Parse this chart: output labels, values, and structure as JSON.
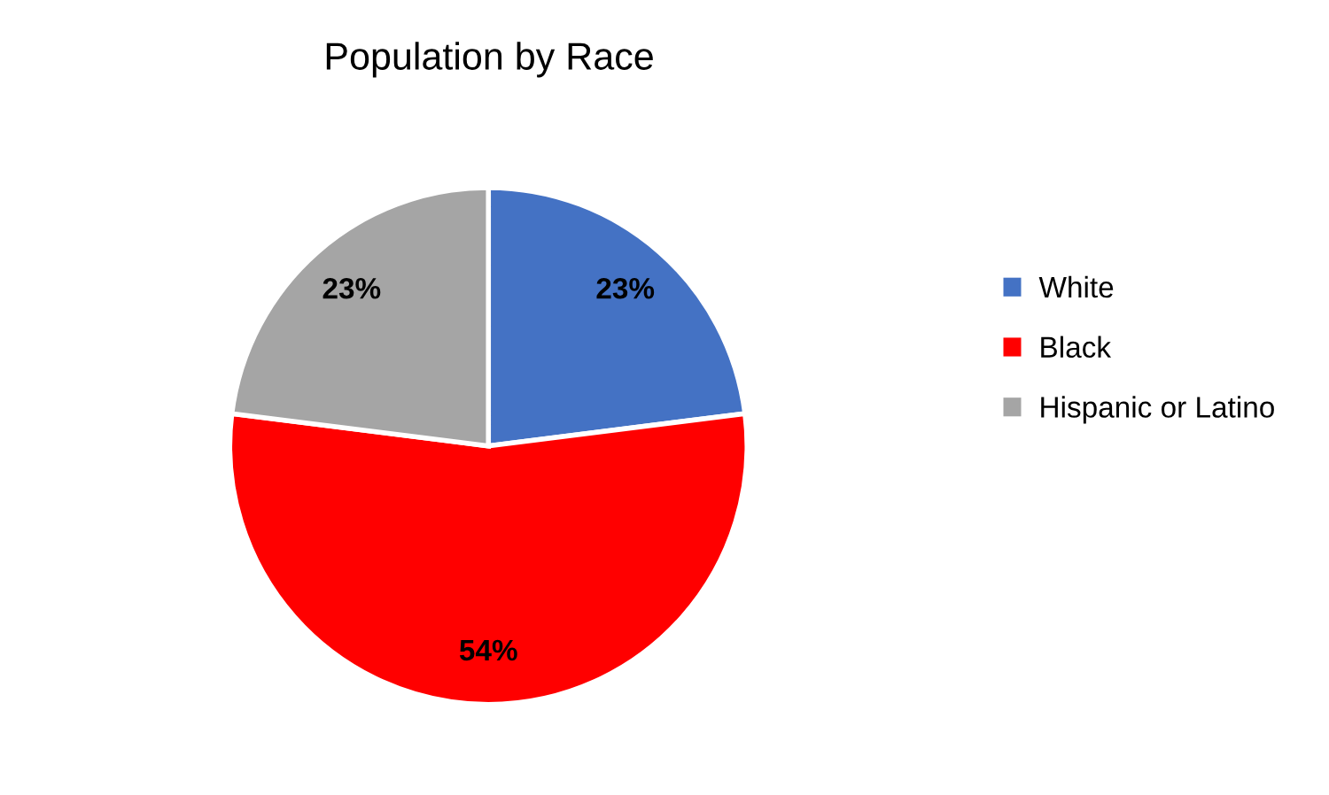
{
  "chart_data": {
    "type": "pie",
    "title": "Population by Race",
    "categories": [
      "White",
      "Black",
      "Hispanic or Latino"
    ],
    "values": [
      23,
      54,
      23
    ],
    "colors": [
      "#4472c4",
      "#ff0000",
      "#a5a5a5"
    ],
    "value_labels": [
      "23%",
      "54%",
      "23%"
    ],
    "legend": "right"
  }
}
